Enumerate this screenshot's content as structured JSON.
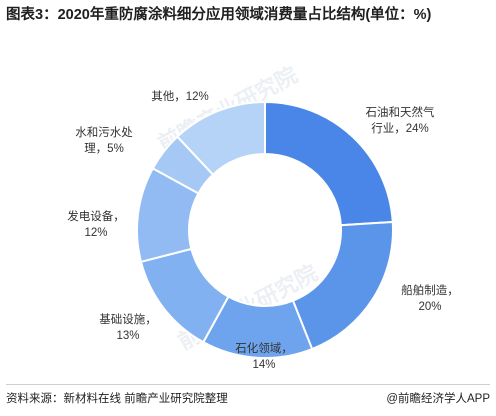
{
  "title": "图表3：2020年重防腐涂料细分应用领域消费量占比结构(单位：%)",
  "source": "资料来源：新材料在线 前瞻产业研究院整理",
  "brand": "@前瞻经济学人APP",
  "watermark": "前瞻产业研究院",
  "chart_data": {
    "type": "pie",
    "donut": true,
    "unit": "%",
    "slices": [
      {
        "label": "石油和天然气行业",
        "value": 24,
        "color": "#4a86e8"
      },
      {
        "label": "船舶制造",
        "value": 20,
        "color": "#5a95ea"
      },
      {
        "label": "石化领域",
        "value": 14,
        "color": "#6ea3ee"
      },
      {
        "label": "基础设施",
        "value": 13,
        "color": "#82b1f1"
      },
      {
        "label": "发电设备",
        "value": 12,
        "color": "#92bbf3"
      },
      {
        "label": "水和污水处理",
        "value": 5,
        "color": "#a5c8f5"
      },
      {
        "label": "其他",
        "value": 12,
        "color": "#b5d2f7"
      }
    ],
    "label_lines": [
      [
        "石油和天然气",
        "行业，24%"
      ],
      [
        "船舶制造，",
        "20%"
      ],
      [
        "石化领域，",
        "14%"
      ],
      [
        "基础设施，",
        "13%"
      ],
      [
        "发电设备，",
        "12%"
      ],
      [
        "水和污水处",
        "理，5%"
      ],
      [
        "其他，12%"
      ]
    ]
  }
}
